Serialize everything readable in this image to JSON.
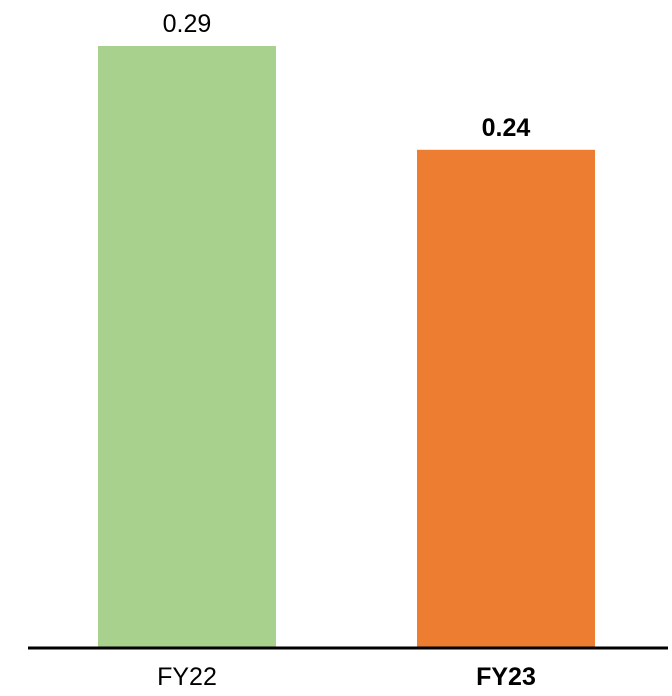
{
  "chart_data": {
    "type": "bar",
    "title": "",
    "xlabel": "",
    "ylabel": "",
    "categories": [
      "FY22",
      "FY23"
    ],
    "values": [
      0.29,
      0.24
    ],
    "value_labels": [
      "0.29",
      "0.24"
    ],
    "ylim": [
      0,
      0.29
    ],
    "grid": false,
    "legend": "none",
    "colors": [
      "#a9d18e",
      "#ed7d31"
    ],
    "emphasized_category": "FY23",
    "axis_color": "#000000"
  }
}
